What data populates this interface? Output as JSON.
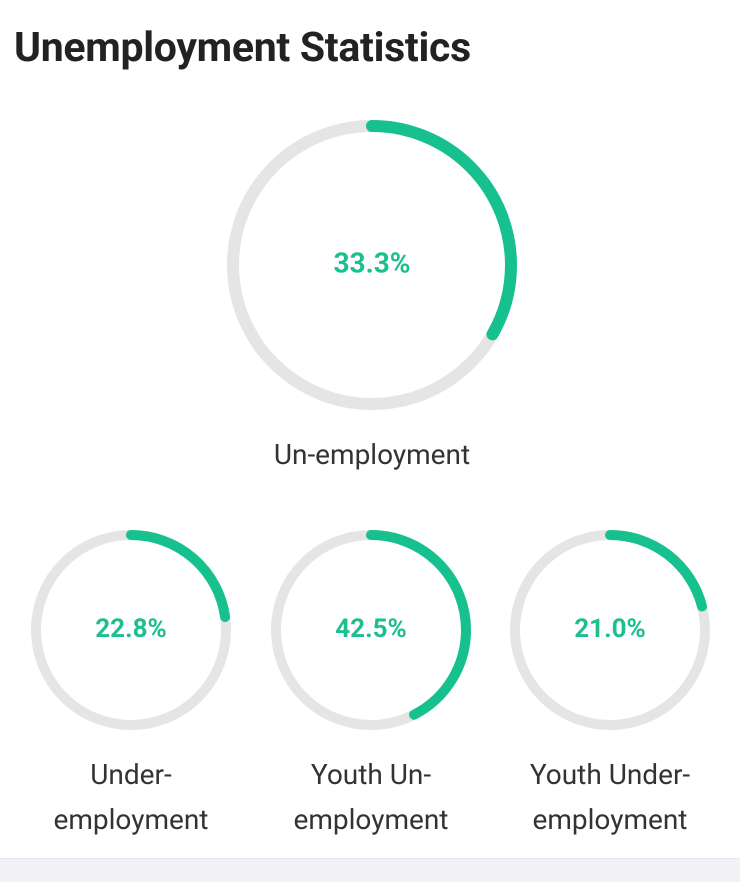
{
  "title": "Unemployment Statistics",
  "metrics": [
    {
      "value": 33.3,
      "value_label": "33.3%",
      "label": "Un-employment"
    },
    {
      "value": 22.8,
      "value_label": "22.8%",
      "label": "Under-employment"
    },
    {
      "value": 42.5,
      "value_label": "42.5%",
      "label": "Youth Un-employment"
    },
    {
      "value": 21.0,
      "value_label": "21.0%",
      "label": "Youth Under-employment"
    }
  ]
}
